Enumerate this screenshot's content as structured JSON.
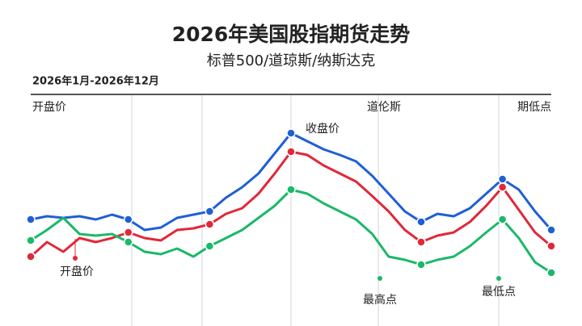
{
  "chart_data": {
    "type": "line",
    "title": "2026年美国股指期货走势",
    "subtitle": "标普500/道琼斯/纳斯达克",
    "period": "2026年1月-2026年12月",
    "top_labels": [
      "开盘价",
      "道伦斯",
      "期低点"
    ],
    "annotations": [
      "收盘价",
      "开盘价",
      "最高点",
      "最低点"
    ],
    "x": [
      0,
      1,
      2,
      3,
      4,
      5,
      6,
      7,
      8,
      9,
      10,
      11,
      12,
      13,
      14,
      15,
      16,
      17,
      18,
      19,
      20,
      21,
      22,
      23,
      24,
      25,
      26,
      27,
      28,
      29,
      30,
      31,
      32
    ],
    "xlim": [
      0,
      32
    ],
    "ylim": [
      0,
      287
    ],
    "series": [
      {
        "color": "#1f5fd6",
        "values": [
          132,
          136,
          134,
          136,
          132,
          138,
          132,
          119,
          122,
          134,
          138,
          142,
          159,
          172,
          189,
          214,
          239,
          229,
          219,
          212,
          204,
          186,
          164,
          142,
          129,
          139,
          136,
          146,
          164,
          182,
          169,
          142,
          119
        ]
      },
      {
        "color": "#e0283a",
        "values": [
          86,
          104,
          92,
          109,
          104,
          109,
          116,
          109,
          106,
          119,
          121,
          126,
          139,
          146,
          164,
          189,
          216,
          212,
          199,
          189,
          179,
          161,
          142,
          119,
          104,
          112,
          116,
          129,
          149,
          172,
          144,
          116,
          99
        ]
      },
      {
        "color": "#1bb86a",
        "values": [
          106,
          119,
          134,
          114,
          112,
          114,
          104,
          92,
          89,
          96,
          86,
          99,
          109,
          119,
          134,
          149,
          169,
          164,
          152,
          142,
          132,
          114,
          86,
          82,
          76,
          82,
          86,
          99,
          116,
          132,
          109,
          79,
          66
        ]
      }
    ]
  }
}
